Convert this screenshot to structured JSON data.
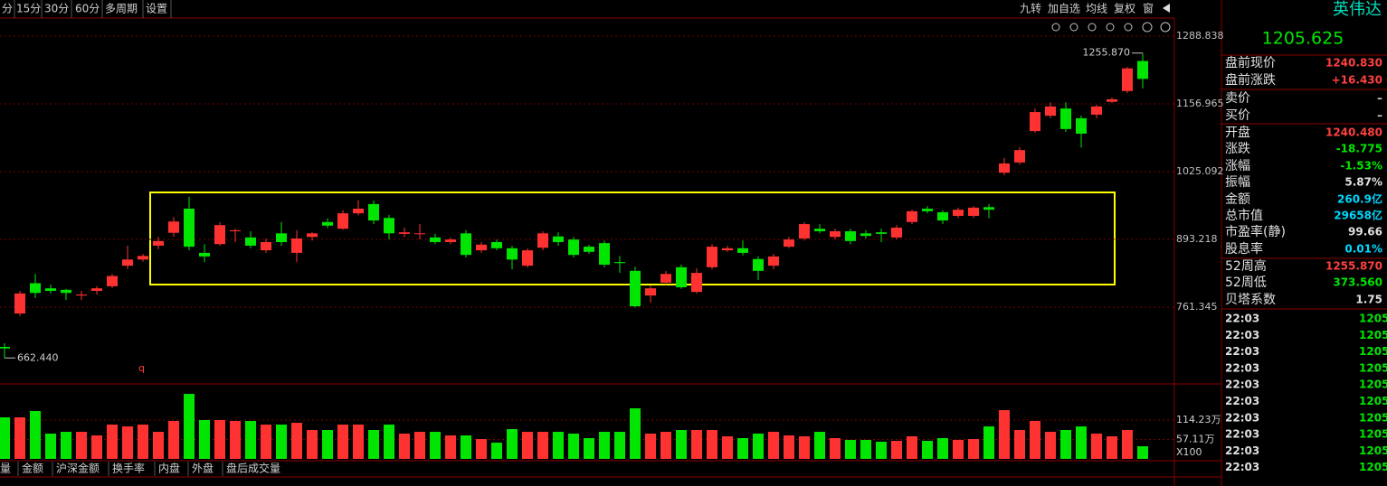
{
  "toolbar": {
    "left": [
      "分",
      "15分",
      "30分",
      "60分",
      "多周期",
      "设置"
    ],
    "right": [
      "九转",
      "加自选",
      "均线",
      "复权",
      "窗"
    ]
  },
  "chart_data": {
    "type": "candlestick",
    "open": [
      684,
      749,
      808,
      798,
      795,
      784,
      793,
      802,
      842,
      854,
      881,
      906,
      953,
      867,
      884,
      909,
      897,
      872,
      905,
      867,
      898,
      927,
      914,
      944,
      962,
      935,
      904,
      904,
      897,
      888,
      905,
      872,
      888,
      876,
      842,
      877,
      899,
      893,
      879,
      886,
      849,
      832,
      784,
      809,
      839,
      791,
      839,
      872,
      876,
      855,
      842,
      879,
      895,
      914,
      898,
      909,
      905,
      907,
      897,
      927,
      953,
      946,
      939,
      939,
      956,
      1023,
      1043,
      1104,
      1134,
      1148,
      1129,
      1136,
      1161,
      1182,
      1240.48
    ],
    "high": [
      691,
      793,
      826,
      805,
      797,
      793,
      802,
      826,
      881,
      865,
      898,
      937,
      976,
      884,
      927,
      914,
      909,
      895,
      927,
      911,
      907,
      934,
      950,
      969,
      969,
      941,
      916,
      923,
      904,
      897,
      911,
      888,
      893,
      881,
      876,
      909,
      907,
      898,
      883,
      891,
      861,
      840,
      803,
      832,
      844,
      837,
      884,
      881,
      891,
      860,
      865,
      898,
      927,
      923,
      914,
      914,
      911,
      914,
      921,
      951,
      958,
      950,
      955,
      958,
      962,
      1052,
      1073,
      1148,
      1160,
      1160,
      1134,
      1155,
      1169,
      1229,
      1255.87
    ],
    "low": [
      662.44,
      744,
      779,
      788,
      775,
      775,
      786,
      798,
      835,
      850,
      874,
      898,
      872,
      849,
      881,
      888,
      876,
      867,
      881,
      849,
      891,
      915,
      912,
      940,
      923,
      893,
      898,
      893,
      884,
      884,
      858,
      867,
      872,
      835,
      838,
      872,
      881,
      858,
      865,
      839,
      828,
      761,
      770,
      805,
      797,
      788,
      835,
      869,
      862,
      814,
      835,
      876,
      891,
      905,
      893,
      884,
      895,
      888,
      893,
      923,
      944,
      923,
      935,
      935,
      934,
      1018,
      1039,
      1101,
      1129,
      1102,
      1072,
      1129,
      1159,
      1178,
      1187
    ],
    "close": [
      681,
      788,
      789,
      793,
      789,
      786,
      798,
      822,
      854,
      861,
      890,
      928,
      879,
      860,
      921,
      911,
      881,
      888,
      888,
      895,
      905,
      920,
      944,
      953,
      930,
      905,
      907,
      905,
      888,
      893,
      863,
      883,
      876,
      854,
      872,
      905,
      888,
      863,
      869,
      844,
      847,
      763,
      798,
      826,
      800,
      828,
      879,
      876,
      867,
      832,
      860,
      893,
      923,
      909,
      909,
      890,
      900,
      904,
      916,
      948,
      948,
      930,
      951,
      955,
      951,
      1041,
      1067,
      1141,
      1152,
      1108,
      1099,
      1152,
      1166,
      1226,
      1205.625
    ],
    "up_color": "#ff3232",
    "down_color": "#00e600",
    "ylim": [
      620.7,
      1324.0
    ],
    "yticks": [
      761.345,
      893.218,
      1025.092,
      1156.965,
      1288.838
    ],
    "annotations": {
      "high": "1255.870",
      "low": "662.440",
      "marker": "q"
    },
    "volume": {
      "values": [
        122.2,
        122.2,
        140.8,
        74.4,
        79.7,
        79.7,
        69.1,
        100.9,
        95.6,
        100.9,
        79.7,
        111.6,
        191.2,
        114.2,
        114.2,
        111.6,
        111.6,
        100.9,
        100.9,
        106.2,
        85.0,
        85.0,
        100.9,
        100.9,
        85.0,
        100.9,
        74.4,
        79.7,
        79.7,
        69.1,
        69.1,
        58.4,
        47.8,
        87.6,
        79.7,
        79.7,
        79.7,
        74.4,
        61.1,
        79.7,
        79.7,
        148.7,
        74.4,
        79.7,
        85.0,
        85.0,
        85.0,
        66.4,
        61.1,
        74.4,
        79.7,
        69.1,
        66.4,
        79.7,
        61.1,
        55.8,
        55.8,
        50.5,
        53.1,
        66.4,
        53.1,
        61.1,
        55.8,
        58.4,
        95.6,
        143.4,
        85.0,
        111.6,
        79.7,
        85.0,
        95.6,
        74.4,
        66.4,
        85.0,
        37.2
      ],
      "ylim": [
        0,
        220.5
      ],
      "yticks": [
        {
          "value": 57.11,
          "label": "57.11万"
        },
        {
          "value": 114.23,
          "label": "114.23万"
        }
      ],
      "unit_label": "X100"
    },
    "tabs": [
      "量",
      "金额",
      "沪深金额",
      "换手率",
      "内盘",
      "外盘",
      "盘后成交量"
    ]
  },
  "quote": {
    "name": "英伟达",
    "price": "1205.625",
    "rows": [
      {
        "label": "盘前现价",
        "value": "1240.830",
        "color": "#ff4040"
      },
      {
        "label": "盘前涨跌",
        "value": "+16.430",
        "color": "#ff4040"
      },
      {
        "label": "卖价",
        "value": "–",
        "color": "#d0d0d0"
      },
      {
        "label": "买价",
        "value": "–",
        "color": "#d0d0d0"
      },
      {
        "label": "开盘",
        "value": "1240.480",
        "color": "#ff4040"
      },
      {
        "label": "涨跌",
        "value": "-18.775",
        "color": "#00e600"
      },
      {
        "label": "涨幅",
        "value": "-1.53%",
        "color": "#00e600"
      },
      {
        "label": "振幅",
        "value": "5.87%",
        "color": "#e0e0e0"
      },
      {
        "label": "金额",
        "value": "260.9亿",
        "color": "#00d8ff"
      },
      {
        "label": "总市值",
        "value": "29658亿",
        "color": "#00d8ff"
      },
      {
        "label": "市盈率(静)",
        "value": "99.66",
        "color": "#e0e0e0"
      },
      {
        "label": "股息率",
        "value": "0.01%",
        "color": "#00d8ff"
      },
      {
        "label": "52周高",
        "value": "1255.870",
        "color": "#ff4040"
      },
      {
        "label": "52周低",
        "value": "373.560",
        "color": "#00e600"
      },
      {
        "label": "贝塔系数",
        "value": "1.75",
        "color": "#e0e0e0"
      }
    ],
    "ticks": [
      {
        "time": "22:03",
        "price": "1205"
      },
      {
        "time": "22:03",
        "price": "1205"
      },
      {
        "time": "22:03",
        "price": "1205"
      },
      {
        "time": "22:03",
        "price": "1205"
      },
      {
        "time": "22:03",
        "price": "1205"
      },
      {
        "time": "22:03",
        "price": "1205"
      },
      {
        "time": "22:03",
        "price": "1205"
      },
      {
        "time": "22:03",
        "price": "1205"
      },
      {
        "time": "22:03",
        "price": "1205"
      },
      {
        "time": "22:03",
        "price": "1205"
      }
    ]
  }
}
